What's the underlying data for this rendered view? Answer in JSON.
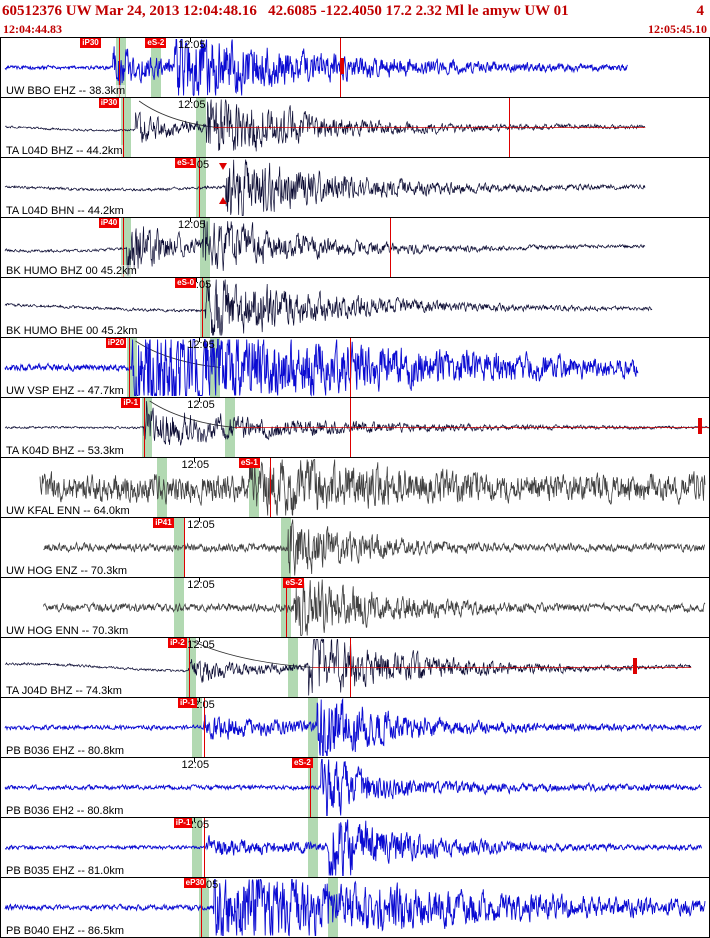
{
  "header": {
    "title": "60512376 UW Mar 24, 2013 12:04:48.16   42.6085 -122.4050 17.2 2.32 Ml le amyw UW 01",
    "right_flag": "4",
    "start_time": "12:04:44.83",
    "end_time": "12:05:45.10",
    "text_color": "#c00000"
  },
  "colors": {
    "blue": "#0a0ad2",
    "navy": "#0a0a32",
    "gray": "#3f3f3f",
    "band": "#b2d9b2",
    "pick_flag": "#ee0000",
    "pick_line": "#dd0000"
  },
  "traces": [
    {
      "label": "UW BBO EHZ -- 38.3km",
      "time_label": "12:05",
      "time_label_x": 0.25,
      "color_key": "blue",
      "seed": 11,
      "start": 0.005,
      "end": 0.885,
      "noise": 0.05,
      "wobble": 0,
      "wobble_freq": 0,
      "p": {
        "x": 0.158,
        "amp": 0.45,
        "tau": 0.05
      },
      "s": {
        "x": 0.245,
        "amp": 0.92,
        "tau": 0.16
      },
      "sustain": 0.22,
      "bands": [
        0.163,
        0.212
      ],
      "flags": [
        {
          "label": "iP30",
          "x": 0.112
        },
        {
          "label": "eS-2",
          "x": 0.204
        }
      ],
      "redlines": [
        0.166,
        0.479
      ],
      "marks": [
        0.479
      ],
      "tri_marks": [],
      "arc": null,
      "red_overlay_from": null
    },
    {
      "label": "TA L04D BHZ -- 44.2km",
      "time_label": "12:05",
      "time_label_x": 0.25,
      "color_key": "navy",
      "seed": 22,
      "start": 0.005,
      "end": 0.91,
      "noise": 0.03,
      "wobble": 0.1,
      "wobble_freq": 2.2,
      "p": {
        "x": 0.19,
        "amp": 0.3,
        "tau": 0.04
      },
      "s": {
        "x": 0.29,
        "amp": 0.95,
        "tau": 0.11
      },
      "sustain": 0.15,
      "bands": [
        0.17,
        0.276
      ],
      "flags": [
        {
          "label": "iP30",
          "x": 0.138
        }
      ],
      "redlines": [
        0.173,
        0.718
      ],
      "marks": [],
      "tri_marks": [],
      "arc": [
        0.195,
        0.305
      ],
      "red_overlay_from": 0.3
    },
    {
      "label": "TA L04D BHN -- 44.2km",
      "time_label": "12:05",
      "time_label_x": 0.255,
      "color_key": "navy",
      "seed": 33,
      "start": 0.005,
      "end": 0.91,
      "noise": 0.04,
      "wobble": 0.08,
      "wobble_freq": 2.0,
      "p": null,
      "s": {
        "x": 0.317,
        "amp": 0.85,
        "tau": 0.14
      },
      "sustain": 0.13,
      "bands": [
        0.276
      ],
      "flags": [
        {
          "label": "eS-1",
          "x": 0.246
        }
      ],
      "redlines": [
        0.279
      ],
      "marks": [],
      "tri_marks": [
        0.313
      ],
      "arc": null,
      "red_overlay_from": null
    },
    {
      "label": "BK HUMO BHZ 00 45.2km",
      "time_label": "12:05",
      "time_label_x": 0.25,
      "color_key": "navy",
      "seed": 44,
      "start": 0.005,
      "end": 0.91,
      "noise": 0.04,
      "wobble": 0.13,
      "wobble_freq": 1.8,
      "p": {
        "x": 0.178,
        "amp": 0.85,
        "tau": 0.045
      },
      "s": {
        "x": 0.285,
        "amp": 0.75,
        "tau": 0.11
      },
      "sustain": 0.13,
      "bands": [
        0.17,
        0.281
      ],
      "flags": [
        {
          "label": "iP40",
          "x": 0.138
        }
      ],
      "redlines": [
        0.173,
        0.549
      ],
      "marks": [],
      "tri_marks": [],
      "arc": null,
      "red_overlay_from": null
    },
    {
      "label": "BK HUMO BHE 00 45.2km",
      "time_label": "12:05",
      "time_label_x": 0.258,
      "color_key": "navy",
      "seed": 55,
      "start": 0.005,
      "end": 0.92,
      "noise": 0.04,
      "wobble": 0.11,
      "wobble_freq": 1.6,
      "p": null,
      "s": {
        "x": 0.289,
        "amp": 0.9,
        "tau": 0.14
      },
      "sustain": 0.13,
      "bands": [
        0.281
      ],
      "flags": [
        {
          "label": "eS-0",
          "x": 0.246
        }
      ],
      "redlines": [
        0.284
      ],
      "marks": [],
      "tri_marks": [],
      "arc": null,
      "red_overlay_from": null
    },
    {
      "label": "UW VSP EHZ -- 47.7km",
      "time_label": "12:05",
      "time_label_x": 0.263,
      "color_key": "blue",
      "seed": 66,
      "start": 0.005,
      "end": 0.9,
      "noise": 0.09,
      "wobble": 0,
      "wobble_freq": 0,
      "p": {
        "x": 0.185,
        "amp": 0.95,
        "tau": 0.33
      },
      "s": null,
      "sustain": 0.52,
      "bands": [
        0.178,
        0.295
      ],
      "flags": [
        {
          "label": "iP20",
          "x": 0.148
        }
      ],
      "redlines": [
        0.181,
        0.493
      ],
      "marks": [],
      "tri_marks": [],
      "arc": [
        0.19,
        0.31
      ],
      "red_overlay_from": null
    },
    {
      "label": "TA K04D BHZ -- 53.3km",
      "time_label": "12:05",
      "time_label_x": 0.263,
      "color_key": "navy",
      "seed": 77,
      "start": 0.005,
      "end": 1.0,
      "noise": 0.03,
      "wobble": 0,
      "wobble_freq": 0,
      "p": {
        "x": 0.202,
        "amp": 1.0,
        "tau": 0.012
      },
      "s": {
        "x": 0.215,
        "amp": 0.4,
        "tau": 0.22
      },
      "sustain": 0.1,
      "bands": [
        0.199,
        0.316
      ],
      "flags": [
        {
          "label": "iP-1",
          "x": 0.17
        }
      ],
      "redlines": [
        0.202,
        0.493
      ],
      "marks": [
        0.985
      ],
      "tri_marks": [],
      "arc": [
        0.21,
        0.33
      ],
      "red_overlay_from": 0.33
    },
    {
      "label": "UW KFAL ENN -- 64.0km",
      "time_label": "12:05",
      "time_label_x": 0.255,
      "color_key": "gray",
      "seed": 88,
      "start": 0.055,
      "end": 0.995,
      "noise": 0.38,
      "wobble": 0,
      "wobble_freq": 0,
      "p": null,
      "s": {
        "x": 0.35,
        "amp": 0.62,
        "tau": 0.35
      },
      "sustain": 0.28,
      "bands": [
        0.22,
        0.35
      ],
      "flags": [
        {
          "label": "eS-1",
          "x": 0.336
        }
      ],
      "redlines": [
        0.38
      ],
      "marks": [],
      "tri_marks": [],
      "arc": null,
      "red_overlay_from": null
    },
    {
      "label": "UW HOG ENZ -- 70.3km",
      "time_label": "12:05",
      "time_label_x": 0.263,
      "color_key": "gray",
      "seed": 99,
      "start": 0.06,
      "end": 0.995,
      "noise": 0.11,
      "wobble": 0,
      "wobble_freq": 0,
      "p": null,
      "s": {
        "x": 0.405,
        "amp": 0.8,
        "tau": 0.11
      },
      "sustain": 0.12,
      "bands": [
        0.244,
        0.395
      ],
      "flags": [
        {
          "label": "iP41",
          "x": 0.215
        }
      ],
      "redlines": [
        0.258
      ],
      "marks": [],
      "tri_marks": [],
      "arc": null,
      "red_overlay_from": null
    },
    {
      "label": "UW HOG ENN -- 70.3km",
      "time_label": "12:05",
      "time_label_x": 0.263,
      "color_key": "gray",
      "seed": 110,
      "start": 0.06,
      "end": 0.995,
      "noise": 0.11,
      "wobble": 0,
      "wobble_freq": 0,
      "p": null,
      "s": {
        "x": 0.412,
        "amp": 0.85,
        "tau": 0.13
      },
      "sustain": 0.12,
      "bands": [
        0.244,
        0.395
      ],
      "flags": [
        {
          "label": "eS-2",
          "x": 0.399
        }
      ],
      "redlines": [
        0.403
      ],
      "marks": [],
      "tri_marks": [],
      "arc": null,
      "red_overlay_from": null
    },
    {
      "label": "TA J04D BHZ -- 74.3km",
      "time_label": "12:05",
      "time_label_x": 0.263,
      "color_key": "navy",
      "seed": 121,
      "start": 0.005,
      "end": 0.975,
      "noise": 0.035,
      "wobble": 0.13,
      "wobble_freq": 2.0,
      "p": {
        "x": 0.265,
        "amp": 0.22,
        "tau": 0.06
      },
      "s": {
        "x": 0.434,
        "amp": 0.95,
        "tau": 0.11
      },
      "sustain": 0.14,
      "bands": [
        0.262,
        0.406
      ],
      "flags": [
        {
          "label": "iP-2",
          "x": 0.236
        }
      ],
      "redlines": [
        0.265,
        0.493
      ],
      "marks": [
        0.893
      ],
      "tri_marks": [],
      "arc": [
        0.27,
        0.44
      ],
      "red_overlay_from": 0.44
    },
    {
      "label": "PB B036 EHZ -- 80.8km",
      "time_label": "12:05",
      "time_label_x": 0.263,
      "color_key": "blue",
      "seed": 132,
      "start": 0.005,
      "end": 0.99,
      "noise": 0.06,
      "wobble": 0,
      "wobble_freq": 0,
      "p": {
        "x": 0.285,
        "amp": 0.18,
        "tau": 0.08
      },
      "s": {
        "x": 0.446,
        "amp": 0.9,
        "tau": 0.09
      },
      "sustain": 0.18,
      "bands": [
        0.27,
        0.434
      ],
      "flags": [
        {
          "label": "iP-1",
          "x": 0.25
        }
      ],
      "redlines": [
        0.287
      ],
      "marks": [],
      "tri_marks": [],
      "arc": null,
      "red_overlay_from": null
    },
    {
      "label": "PB B036 EH2 -- 80.8km",
      "time_label": "12:05",
      "time_label_x": 0.255,
      "color_key": "blue",
      "seed": 143,
      "start": 0.005,
      "end": 0.99,
      "noise": 0.06,
      "wobble": 0,
      "wobble_freq": 0,
      "p": null,
      "s": {
        "x": 0.451,
        "amp": 1.0,
        "tau": 0.05
      },
      "sustain": 0.2,
      "bands": [
        0.434
      ],
      "flags": [
        {
          "label": "eS-2",
          "x": 0.411
        }
      ],
      "redlines": [
        0.437
      ],
      "marks": [],
      "tri_marks": [],
      "arc": null,
      "red_overlay_from": null
    },
    {
      "label": "PB B035 EHZ -- 81.0km",
      "time_label": "12:05",
      "time_label_x": 0.255,
      "color_key": "blue",
      "seed": 154,
      "start": 0.005,
      "end": 0.99,
      "noise": 0.05,
      "wobble": 0,
      "wobble_freq": 0,
      "p": {
        "x": 0.29,
        "amp": 0.14,
        "tau": 0.08
      },
      "s": {
        "x": 0.463,
        "amp": 0.9,
        "tau": 0.09
      },
      "sustain": 0.16,
      "bands": [
        0.27,
        0.434
      ],
      "flags": [
        {
          "label": "iP-1",
          "x": 0.244
        }
      ],
      "redlines": [
        0.287
      ],
      "marks": [],
      "tri_marks": [],
      "arc": null,
      "red_overlay_from": null
    },
    {
      "label": "PB B040 EHZ -- 86.5km",
      "time_label": "12:05",
      "time_label_x": 0.268,
      "color_key": "blue",
      "seed": 165,
      "start": 0.005,
      "end": 0.995,
      "noise": 0.07,
      "wobble": 0,
      "wobble_freq": 0,
      "p": {
        "x": 0.3,
        "amp": 0.8,
        "tau": 0.3
      },
      "s": null,
      "sustain": 0.4,
      "bands": [
        0.28,
        0.462
      ],
      "flags": [
        {
          "label": "eP30",
          "x": 0.258
        }
      ],
      "redlines": [
        0.283
      ],
      "marks": [],
      "tri_marks": [],
      "arc": null,
      "red_overlay_from": null
    }
  ]
}
